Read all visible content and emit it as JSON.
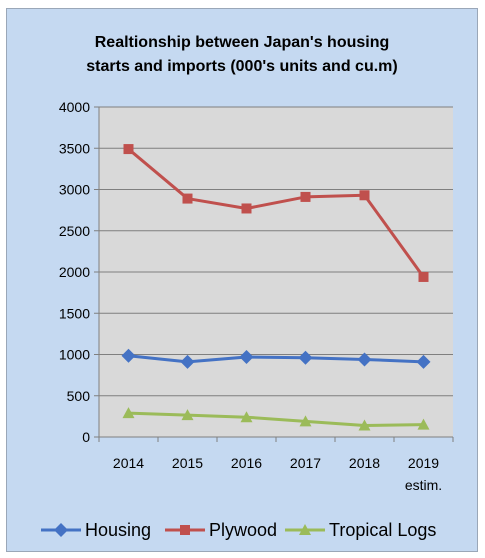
{
  "chart_data": {
    "type": "line",
    "title_line1": "Realtionship between Japan's housing",
    "title_line2": "starts and imports (000's units and cu.m)",
    "categories": [
      "2014",
      "2015",
      "2016",
      "2017",
      "2018",
      "2019"
    ],
    "category_sublabels": [
      "",
      "",
      "",
      "",
      "",
      "estim."
    ],
    "ylim": [
      0,
      4000
    ],
    "yticks": [
      0,
      500,
      1000,
      1500,
      2000,
      2500,
      3000,
      3500,
      4000
    ],
    "grid": true,
    "legend_position": "bottom",
    "series": [
      {
        "name": "Housing",
        "values": [
          985,
          910,
          970,
          960,
          940,
          910
        ],
        "color": "#4472c4",
        "marker": "diamond"
      },
      {
        "name": "Plywood",
        "values": [
          3490,
          2890,
          2770,
          2910,
          2930,
          1940
        ],
        "color": "#c0504d",
        "marker": "square"
      },
      {
        "name": "Tropical Logs",
        "values": [
          290,
          265,
          240,
          190,
          140,
          150
        ],
        "color": "#9bbb59",
        "marker": "triangle"
      }
    ]
  }
}
